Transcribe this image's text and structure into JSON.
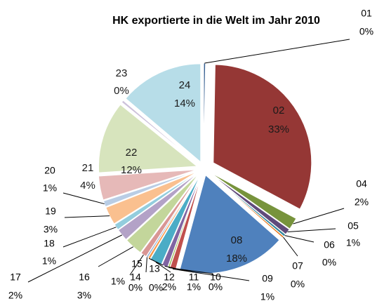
{
  "chart_data": {
    "type": "pie",
    "title": "HK exportierte in die Welt im Jahr 2010",
    "categories": [
      "01",
      "02",
      "04",
      "05",
      "06",
      "07",
      "08",
      "09",
      "10",
      "11",
      "12",
      "13",
      "14",
      "15",
      "16",
      "17",
      "18",
      "19",
      "20",
      "21",
      "22",
      "23",
      "24"
    ],
    "values": [
      0.3,
      33,
      2,
      1,
      0.4,
      0.3,
      18,
      1,
      0.3,
      1,
      2,
      0.4,
      0.3,
      1,
      3,
      2,
      1,
      3,
      1,
      4,
      12,
      0.4,
      14
    ],
    "value_labels": [
      "0%",
      "33%",
      "2%",
      "1%",
      "0%",
      "0%",
      "18%",
      "1%",
      "0%",
      "1%",
      "2%",
      "0%",
      "0%",
      "1%",
      "3%",
      "2%",
      "1%",
      "3%",
      "1%",
      "4%",
      "12%",
      "0%",
      "14%"
    ],
    "colors": [
      "#376092",
      "#953735",
      "#77933c",
      "#604a7b",
      "#31859c",
      "#e46c0a",
      "#4f81bd",
      "#c0504d",
      "#9bbb59",
      "#8064a2",
      "#4bacc6",
      "#f79646",
      "#95b3d7",
      "#d99694",
      "#c3d69b",
      "#b3a2c7",
      "#93cddd",
      "#fac08f",
      "#b9cde5",
      "#e6b9b8",
      "#d7e4bd",
      "#ccc1da",
      "#b7dde8"
    ]
  }
}
